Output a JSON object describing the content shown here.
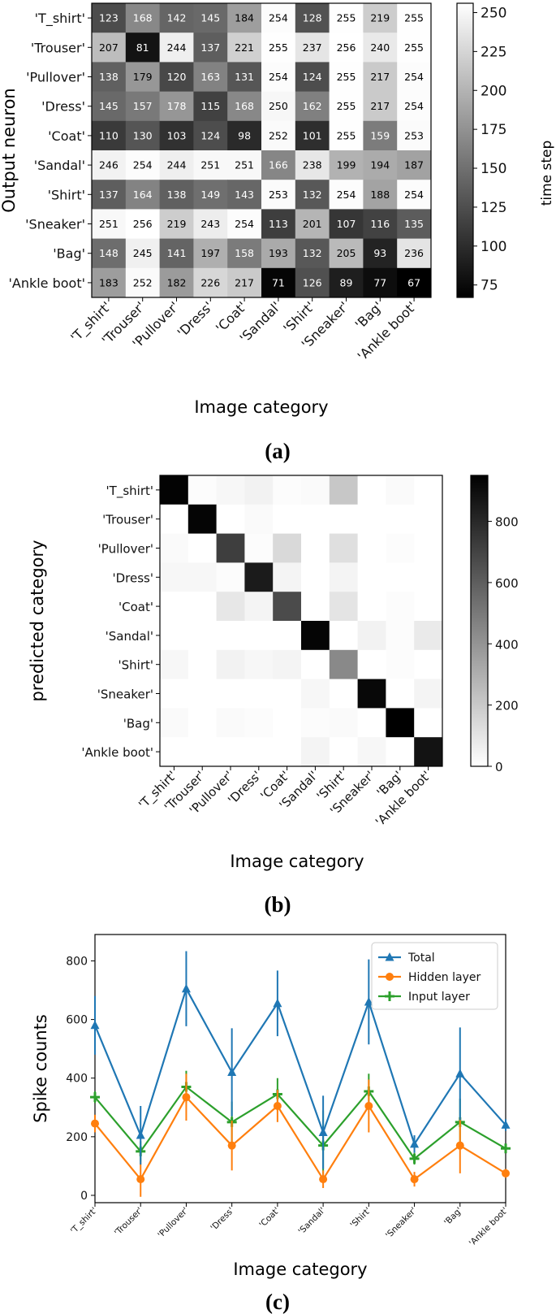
{
  "figure": {
    "captions": [
      "(a)",
      "(b)",
      "(c)"
    ]
  },
  "chart_data": [
    {
      "type": "heatmap",
      "panel": "(a)",
      "xlabel": "Image category",
      "ylabel": "Output neuron",
      "x_categories": [
        "'T_shirt'",
        "'Trouser'",
        "'Pullover'",
        "'Dress'",
        "'Coat'",
        "'Sandal'",
        "'Shirt'",
        "'Sneaker'",
        "'Bag'",
        "'Ankle boot'"
      ],
      "y_categories": [
        "'T_shirt'",
        "'Trouser'",
        "'Pullover'",
        "'Dress'",
        "'Coat'",
        "'Sandal'",
        "'Shirt'",
        "'Sneaker'",
        "'Bag'",
        "'Ankle boot'"
      ],
      "values": [
        [
          123,
          168,
          142,
          145,
          184,
          254,
          128,
          255,
          219,
          255
        ],
        [
          207,
          81,
          244,
          137,
          221,
          255,
          237,
          256,
          240,
          255
        ],
        [
          138,
          179,
          120,
          163,
          131,
          254,
          124,
          255,
          217,
          254
        ],
        [
          145,
          157,
          178,
          115,
          168,
          250,
          162,
          255,
          217,
          254
        ],
        [
          110,
          130,
          103,
          124,
          98,
          252,
          101,
          255,
          159,
          253
        ],
        [
          246,
          254,
          244,
          251,
          251,
          166,
          238,
          199,
          194,
          187
        ],
        [
          137,
          164,
          138,
          149,
          143,
          253,
          132,
          254,
          188,
          254
        ],
        [
          251,
          256,
          219,
          243,
          254,
          113,
          201,
          107,
          116,
          135
        ],
        [
          148,
          245,
          141,
          197,
          158,
          193,
          132,
          205,
          93,
          236
        ],
        [
          183,
          252,
          182,
          226,
          217,
          71,
          126,
          89,
          77,
          67
        ]
      ],
      "colorbar": {
        "label": "time step",
        "range": [
          67,
          256
        ],
        "ticks": [
          75,
          100,
          125,
          150,
          175,
          200,
          225,
          250
        ],
        "colormap": "gray"
      }
    },
    {
      "type": "heatmap",
      "panel": "(b)",
      "xlabel": "Image category",
      "ylabel": "predicted category",
      "x_categories": [
        "'T_shirt'",
        "'Trouser'",
        "'Pullover'",
        "'Dress'",
        "'Coat'",
        "'Sandal'",
        "'Shirt'",
        "'Sneaker'",
        "'Bag'",
        "'Ankle boot'"
      ],
      "y_categories": [
        "'T_shirt'",
        "'Trouser'",
        "'Pullover'",
        "'Dress'",
        "'Coat'",
        "'Sandal'",
        "'Shirt'",
        "'Sneaker'",
        "'Bag'",
        "'Ankle boot'"
      ],
      "values": [
        [
          940,
          10,
          30,
          50,
          10,
          20,
          210,
          0,
          20,
          0
        ],
        [
          0,
          930,
          0,
          20,
          0,
          0,
          0,
          0,
          0,
          0
        ],
        [
          20,
          0,
          720,
          10,
          140,
          0,
          120,
          0,
          10,
          0
        ],
        [
          30,
          30,
          10,
          850,
          40,
          0,
          40,
          0,
          0,
          0
        ],
        [
          0,
          0,
          90,
          40,
          670,
          0,
          100,
          0,
          10,
          0
        ],
        [
          0,
          0,
          0,
          0,
          0,
          930,
          0,
          50,
          10,
          80
        ],
        [
          30,
          0,
          50,
          30,
          40,
          0,
          440,
          0,
          10,
          0
        ],
        [
          0,
          0,
          0,
          0,
          0,
          30,
          0,
          920,
          0,
          40
        ],
        [
          20,
          0,
          20,
          10,
          0,
          10,
          20,
          0,
          950,
          0
        ],
        [
          0,
          0,
          0,
          0,
          0,
          40,
          0,
          30,
          0,
          880
        ]
      ],
      "colorbar": {
        "range": [
          0,
          950
        ],
        "ticks": [
          0,
          200,
          400,
          600,
          800
        ],
        "colormap": "gray_r"
      }
    },
    {
      "type": "line",
      "panel": "(c)",
      "xlabel": "Image category",
      "ylabel": "Spike counts",
      "categories": [
        "'T_shirt'",
        "'Trouser'",
        "'Pullover'",
        "'Dress'",
        "'Coat'",
        "'Sandal'",
        "'Shirt'",
        "'Sneaker'",
        "'Bag'",
        "'Ankle boot'"
      ],
      "ylim": [
        -25,
        890
      ],
      "yticks": [
        0,
        200,
        400,
        600,
        800
      ],
      "legend_position": "top-right",
      "series": [
        {
          "name": "Total",
          "color": "#1f77b4",
          "marker": "triangle",
          "values": [
            580,
            205,
            705,
            420,
            655,
            215,
            660,
            175,
            415,
            240
          ],
          "errors": [
            100,
            100,
            128,
            150,
            112,
            125,
            145,
            30,
            158,
            20
          ]
        },
        {
          "name": "Hidden layer",
          "color": "#ff7f0e",
          "marker": "circle",
          "values": [
            245,
            55,
            335,
            170,
            305,
            55,
            305,
            55,
            170,
            75
          ],
          "errors": [
            30,
            60,
            80,
            85,
            55,
            30,
            90,
            25,
            95,
            15
          ]
        },
        {
          "name": "Input layer",
          "color": "#2ca02c",
          "marker": "plus",
          "values": [
            335,
            150,
            370,
            250,
            345,
            170,
            355,
            125,
            250,
            160
          ],
          "errors": [
            20,
            35,
            55,
            70,
            55,
            120,
            60,
            20,
            80,
            10
          ]
        }
      ]
    }
  ]
}
